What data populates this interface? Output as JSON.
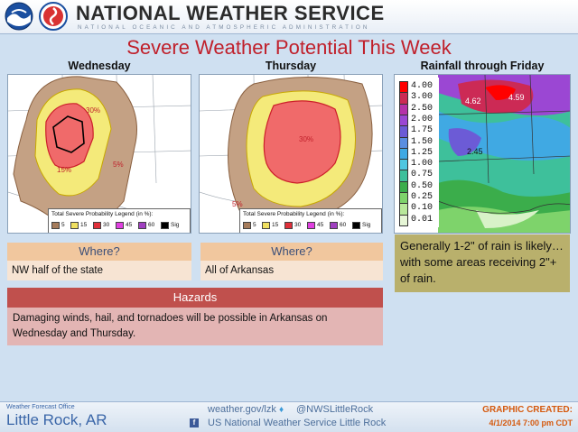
{
  "header": {
    "agency": "NATIONAL WEATHER SERVICE",
    "subtitle": "NATIONAL OCEANIC AND ATMOSPHERIC ADMINISTRATION"
  },
  "title": "Severe Weather Potential This Week",
  "columns": {
    "wednesday": "Wednesday",
    "thursday": "Thursday",
    "rainfall": "Rainfall through Friday"
  },
  "legend": {
    "title": "Total Severe Probability Legend (in %):",
    "items": [
      {
        "label": "5",
        "color": "#a67c5b"
      },
      {
        "label": "15",
        "color": "#f0e060"
      },
      {
        "label": "30",
        "color": "#e0303a"
      },
      {
        "label": "45",
        "color": "#e040e0"
      },
      {
        "label": "60",
        "color": "#a040c0"
      },
      {
        "label": "Sig",
        "color": "#000000"
      }
    ]
  },
  "map_labels": {
    "wed_30": "30%",
    "wed_15": "15%",
    "wed_5": "5%",
    "thu_30": "30%",
    "thu_5": "5%"
  },
  "rain_scale": [
    {
      "label": "4.00",
      "color": "#ff0000"
    },
    {
      "label": "3.00",
      "color": "#cc2a55"
    },
    {
      "label": "2.50",
      "color": "#b531a8"
    },
    {
      "label": "2.00",
      "color": "#9b47d3"
    },
    {
      "label": "1.75",
      "color": "#6c5bd6"
    },
    {
      "label": "1.50",
      "color": "#5a8ee0"
    },
    {
      "label": "1.25",
      "color": "#40a9e3"
    },
    {
      "label": "1.00",
      "color": "#4fc6e0"
    },
    {
      "label": "0.75",
      "color": "#3ec09b"
    },
    {
      "label": "0.50",
      "color": "#3bad4b"
    },
    {
      "label": "0.25",
      "color": "#7ed36b"
    },
    {
      "label": "0.10",
      "color": "#b8e89a"
    },
    {
      "label": "0.01",
      "color": "#e6f6d6"
    }
  ],
  "rain_labels": {
    "max1": "4.62",
    "max2": "4.59",
    "max3": "2.45"
  },
  "where": {
    "heading": "Where?",
    "wednesday": "NW half of the state",
    "thursday": "All of Arkansas"
  },
  "rain_note": "Generally 1-2\" of rain is likely…with some areas receiving 2\"+ of rain.",
  "hazards": {
    "heading": "Hazards",
    "text": "Damaging winds, hail, and tornadoes will be possible in Arkansas on Wednesday and Thursday."
  },
  "footer": {
    "office_small": "Weather Forecast Office",
    "office_city": "Little Rock, AR",
    "web": "weather.gov/lzk",
    "twitter": "@NWSLittleRock",
    "facebook": "US National Weather Service Little Rock",
    "graphic_label": "GRAPHIC CREATED:",
    "graphic_date": "4/1/2014 7:00 pm CDT"
  }
}
